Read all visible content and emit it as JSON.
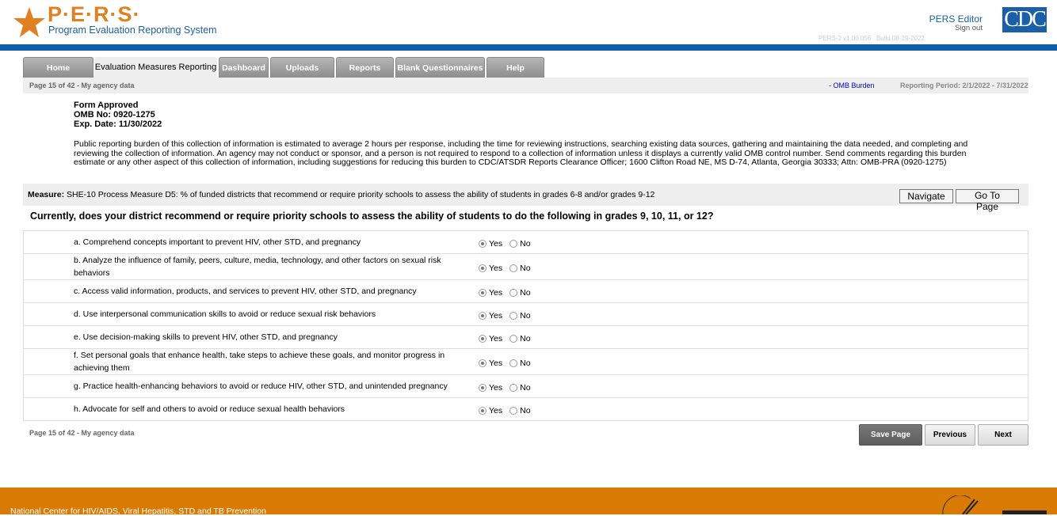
{
  "header": {
    "logo_title": "P·E·R·S·",
    "logo_subtitle": "Program Evaluation Reporting System",
    "user": "PERS Editor",
    "sign_out": "Sign out",
    "version": "PERS-2 v1.00.056",
    "build": "Build 08-29-2022",
    "cdc_logo": "CDC"
  },
  "tabs": [
    {
      "label": "Home"
    },
    {
      "label": "Evaluation Measures Reporting",
      "active": true
    },
    {
      "label": "Dashboard"
    },
    {
      "label": "Uploads"
    },
    {
      "label": "Reports"
    },
    {
      "label": "Blank Questionnaires"
    },
    {
      "label": "Help"
    }
  ],
  "infobar": {
    "page": "Page 15 of 42 - My agency data",
    "omb_link": "- OMB Burden",
    "period": "Reporting Period: 2/1/2022 - 7/31/2022"
  },
  "omb": {
    "approved": "Form Approved",
    "number": "OMB No: 0920-1275",
    "exp": "Exp. Date: 11/30/2022",
    "burden": "Public reporting burden of this collection of information is estimated to average 2 hours per response, including the time for reviewing instructions, searching existing data sources, gathering and maintaining the data needed, and completing and reviewing the collection of information. An agency may not conduct or sponsor, and a person is not required to respond to a collection of information unless it displays a currently valid OMB control number. Send comments regarding this burden estimate or any other aspect of this collection of information, including suggestions for reducing this burden to CDC/ATSDR Reports Clearance Officer; 1600 Clifton Road NE, MS D-74, Atlanta, Georgia 30333; Attn: OMB-PRA (0920-1275)"
  },
  "measure": {
    "label": "Measure:",
    "text": "SHE-10 Process Measure D5: % of funded districts that recommend or require priority schools to assess the ability of students in grades 6-8 and/or grades 9-12",
    "navigate": "Navigate",
    "goto": "Go To Page"
  },
  "question": "Currently, does your district recommend or require priority schools to assess the ability of students to do the following in grades 9, 10, 11, or 12?",
  "options": {
    "yes": "Yes",
    "no": "No"
  },
  "items": [
    {
      "text": "a. Comprehend concepts important to prevent HIV, other STD, and pregnancy",
      "answer": "Yes"
    },
    {
      "text": "b. Analyze the influence of family, peers, culture, media, technology, and other factors on sexual risk behaviors",
      "answer": "Yes"
    },
    {
      "text": "c. Access valid information, products, and services to prevent HIV, other STD, and pregnancy",
      "answer": "Yes"
    },
    {
      "text": "d. Use interpersonal communication skills to avoid or reduce sexual risk behaviors",
      "answer": "Yes"
    },
    {
      "text": "e. Use decision-making skills to prevent HIV, other STD, and pregnancy",
      "answer": "Yes"
    },
    {
      "text": "f. Set personal goals that enhance health, take steps to achieve these goals, and monitor progress in achieving them",
      "answer": "Yes"
    },
    {
      "text": "g. Practice health-enhancing behaviors to avoid or reduce HIV, other STD, and unintended pregnancy",
      "answer": "Yes"
    },
    {
      "text": "h. Advocate for self and others to avoid or reduce sexual health behaviors",
      "answer": "Yes"
    }
  ],
  "footer_page": "Page 15 of 42 - My agency data",
  "buttons": {
    "save": "Save Page",
    "previous": "Previous",
    "next": "Next"
  },
  "footer": {
    "text": "National Center for HIV/AIDS, Viral Hepatitis, STD and TB Prevention"
  },
  "colors": {
    "brand_orange": "#d97a04",
    "brand_blue": "#0d5ea8"
  }
}
